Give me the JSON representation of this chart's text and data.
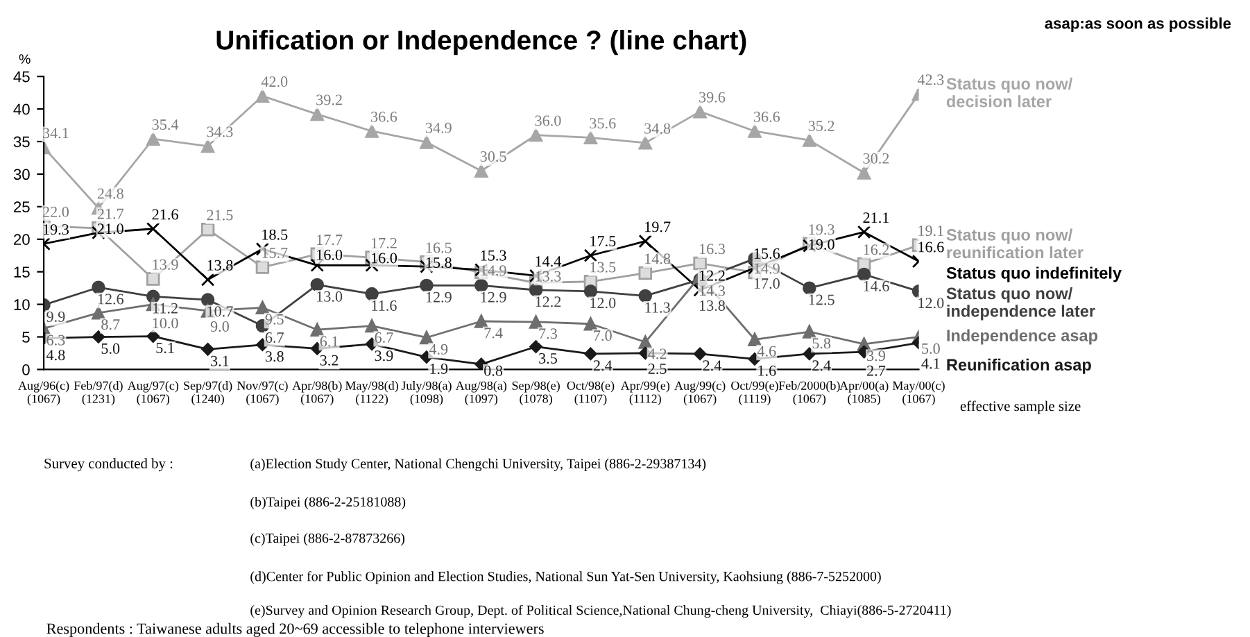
{
  "chart_data": {
    "type": "line",
    "title": "Unification or Independence ? (line chart)",
    "ylabel": "%",
    "categories": [
      "Aug/96(c)\n(1067)",
      "Feb/97(d)\n(1231)",
      "Aug/97(c)\n(1067)",
      "Sep/97(d)\n(1240)",
      "Nov/97(c)\n(1067)",
      "Apr/98(b)\n(1067)",
      "May/98(d)\n(1122)",
      "July/98(a)\n(1098)",
      "Aug/98(a)\n(1097)",
      "Sep/98(e)\n(1078)",
      "Oct/98(e)\n(1107)",
      "Apr/99(e)\n(1112)",
      "Aug/99(c)\n(1067)",
      "Oct/99(e)\n(1119)",
      "Feb/2000(b)\n(1067)",
      "Apr/00(a)\n(1085)",
      "May/00(c)\n(1067)"
    ],
    "series": [
      {
        "name": "Status quo now/\ndecision later",
        "color": "#a6a6a6",
        "marker": "triangle",
        "values": [
          34.1,
          24.8,
          35.4,
          34.3,
          42.0,
          39.2,
          36.6,
          34.9,
          30.5,
          36.0,
          35.6,
          34.8,
          39.6,
          36.6,
          35.2,
          30.2,
          42.3
        ],
        "value_labels": [
          "34.1",
          "24.8",
          "35.4",
          "34.3",
          "42.0",
          "39.2",
          "36.6",
          "34.9",
          "30.5",
          "36.0",
          "35.6",
          "34.8",
          "39.6",
          "36.6",
          "35.2",
          "30.2",
          "42.3"
        ]
      },
      {
        "name": "Status quo now/\nreunification later",
        "color": "#a0a0a0",
        "marker": "square",
        "values": [
          22.0,
          21.7,
          13.9,
          21.5,
          15.7,
          17.7,
          17.2,
          16.5,
          14.9,
          13.3,
          13.5,
          14.8,
          16.3,
          14.9,
          19.3,
          16.2,
          19.1
        ],
        "value_labels": [
          "22.0",
          "21.7",
          "13.9",
          "21.5",
          "15.7",
          "17.7",
          "17.2",
          "16.5",
          "14.9",
          "13.3",
          "13.5",
          "14.8",
          "16.3",
          "14.9",
          "19.3",
          "16.2",
          "19.1"
        ]
      },
      {
        "name": "Status quo indefinitely",
        "color": "#000000",
        "marker": "cross",
        "values": [
          19.3,
          21.0,
          21.6,
          13.8,
          18.5,
          16.0,
          16.0,
          15.8,
          15.3,
          14.4,
          17.5,
          19.7,
          12.2,
          15.6,
          19.0,
          21.1,
          16.6
        ],
        "value_labels": [
          "19.3",
          "21.0",
          "21.6",
          "13.8",
          "18.5",
          "16.0",
          "16.0",
          "15.8",
          "15.3",
          "14.4",
          "17.5",
          "19.7",
          "12.2",
          "15.6",
          "19.0",
          "21.1",
          "16.6"
        ]
      },
      {
        "name": "Status quo now/\nindependence later",
        "color": "#404040",
        "marker": "circle",
        "values": [
          9.9,
          12.6,
          11.2,
          10.7,
          6.7,
          13.0,
          11.6,
          12.9,
          12.9,
          12.2,
          12.0,
          11.3,
          13.8,
          17.0,
          12.5,
          14.6,
          12.0
        ],
        "value_labels": [
          "9.9",
          "12.6",
          "11.2",
          "10.7",
          "6.7",
          "13.0",
          "11.6",
          "12.9",
          "12.9",
          "12.2",
          "12.0",
          "11.3",
          "13.8",
          "17.0",
          "12.5",
          "14.6",
          "12.0"
        ]
      },
      {
        "name": "Independence asap",
        "color": "#6e6e6e",
        "marker": "triangle",
        "values": [
          6.3,
          8.7,
          10.0,
          9.0,
          9.5,
          6.1,
          6.7,
          4.9,
          7.4,
          7.3,
          7.0,
          4.2,
          14.3,
          4.6,
          5.8,
          3.9,
          5.0
        ],
        "value_labels": [
          "6.3",
          "8.7",
          "10.0",
          "9.0",
          "9.5",
          "6.1",
          "6.7",
          "4.9",
          "7.4",
          "7.3",
          "7.0",
          "4.2",
          "14.3",
          "4.6",
          "5.8",
          "3.9",
          "5.0"
        ]
      },
      {
        "name": "Reunification asap",
        "color": "#1a1a1a",
        "marker": "diamond",
        "values": [
          4.8,
          5.0,
          5.1,
          3.1,
          3.8,
          3.2,
          3.9,
          1.9,
          0.8,
          3.5,
          2.4,
          2.5,
          2.4,
          1.6,
          2.4,
          2.7,
          4.1
        ],
        "value_labels": [
          "4.8",
          "5.0",
          "5.1",
          "3.1",
          "3.8",
          "3.2",
          "3.9",
          "1.9",
          "0.8",
          "3.5",
          "2.4",
          "2.5",
          "2.4",
          "1.6",
          "2.4",
          "2.7",
          "4.1"
        ]
      }
    ],
    "ylim": [
      0,
      45
    ],
    "yticks": [
      0,
      5,
      10,
      15,
      20,
      25,
      30,
      35,
      40,
      45
    ],
    "grid": false,
    "legend": false,
    "line_style": "solid",
    "annotations": [
      "asap:as soon as possible",
      "effective sample size",
      "Survey conducted by :",
      "(a)Election Study Center, National Chengchi University, Taipei (886-2-29387134)",
      "(b)Taipei (886-2-25181088)",
      "(c)Taipei (886-2-87873266)",
      "(d)Center for Public Opinion and Election Studies, National Sun Yat-Sen University, Kaohsiung (886-7-5252000)",
      "(e)Survey and Opinion Research Group, Dept. of Political Science,National Chung-cheng University,  Chiayi(886-5-2720411)",
      "Respondents : Taiwanese adults aged 20~69 accessible to telephone interviewers"
    ]
  }
}
